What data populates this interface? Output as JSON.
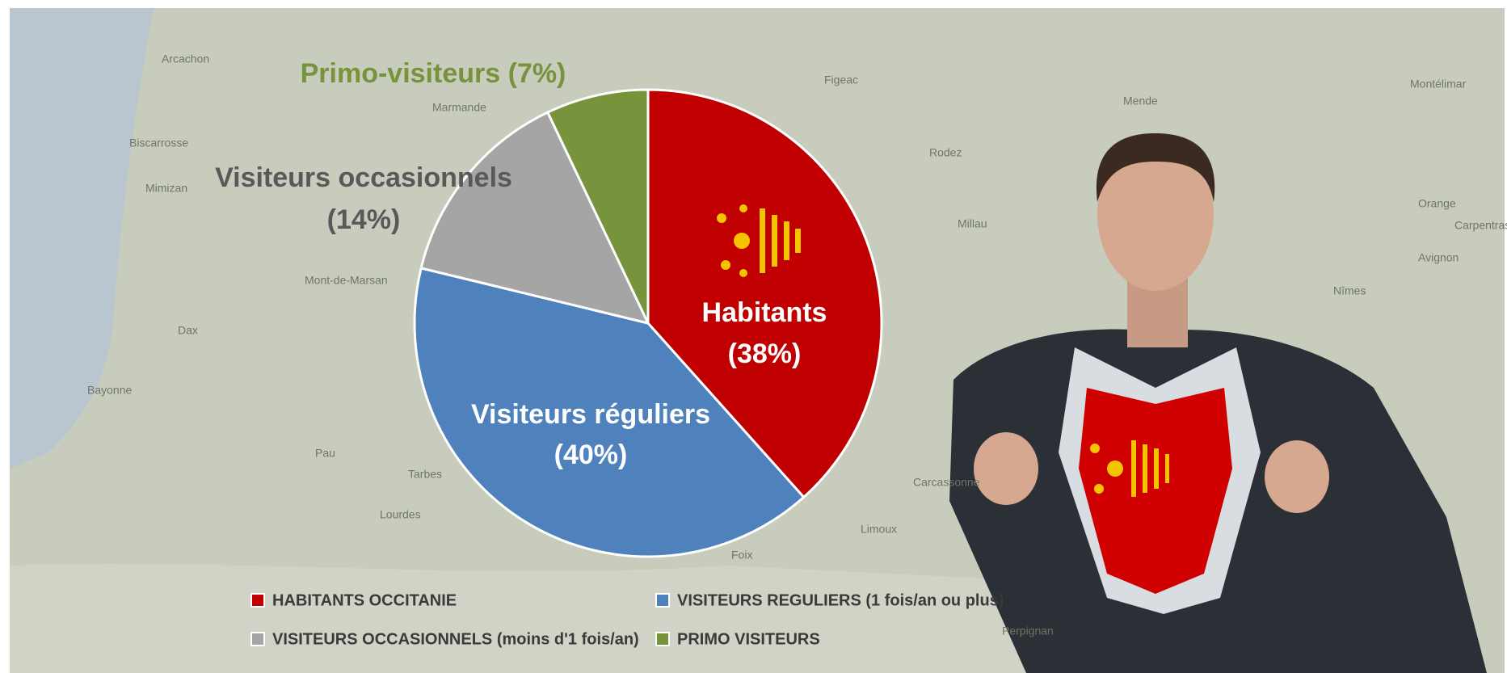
{
  "chart_data": {
    "type": "pie",
    "categories": [
      "Habitants",
      "Visiteurs réguliers",
      "Visiteurs occasionnels",
      "Primo-visiteurs"
    ],
    "values": [
      38,
      40,
      14,
      7
    ],
    "value_labels": [
      "(38%)",
      "(40%)",
      "(14%)",
      "(7%)"
    ],
    "colors": [
      "#c00000",
      "#4f81bd",
      "#a5a5a5",
      "#77933c"
    ],
    "legend": [
      "HABITANTS OCCITANIE",
      "VISITEURS REGULIERS (1 fois/an ou plus)",
      "VISITEURS OCCASIONNELS (moins d'1 fois/an)",
      "PRIMO VISITEURS"
    ]
  },
  "background_map": {
    "labels": [
      "Arcachon",
      "Biscarrosse",
      "Mimizan",
      "Marmande",
      "Figeac",
      "Mende",
      "Mont-de-Marsan",
      "Dax",
      "Bayonne",
      "Pau",
      "Tarbes",
      "Lourdes",
      "Rodez",
      "Millau",
      "Carcassonne",
      "Nîmes",
      "Avignon",
      "Orange",
      "Carpentras",
      "Perpignan",
      "Foix",
      "Limoux",
      "Montélimar"
    ]
  }
}
